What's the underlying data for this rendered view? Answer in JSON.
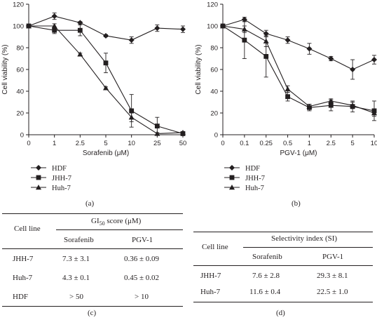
{
  "chart_data": [
    {
      "type": "line",
      "panel_label": "(a)",
      "xlabel": "Sorafenib (μM)",
      "ylabel": "Cell viability (%)",
      "categories": [
        "0",
        "1",
        "2.5",
        "5",
        "10",
        "25",
        "50"
      ],
      "ylim": [
        0,
        120
      ],
      "yticks": [
        "0",
        "20",
        "40",
        "60",
        "80",
        "100",
        "120"
      ],
      "legend_position": "bottom-left",
      "series": [
        {
          "name": "HDF",
          "marker": "diamond",
          "values": [
            100,
            109,
            103,
            91,
            87,
            98,
            97
          ],
          "errors": [
            0,
            3,
            1,
            1,
            3,
            3,
            3
          ]
        },
        {
          "name": "JHH-7",
          "marker": "square",
          "values": [
            100,
            96,
            96,
            66,
            22,
            8,
            1
          ],
          "errors": [
            0,
            3,
            5,
            9,
            15,
            8,
            1
          ]
        },
        {
          "name": "Huh-7",
          "marker": "triangle",
          "values": [
            100,
            100,
            74,
            43,
            16,
            1,
            2
          ],
          "errors": [
            0,
            2,
            1,
            1,
            4,
            1,
            1
          ]
        }
      ]
    },
    {
      "type": "line",
      "panel_label": "(b)",
      "xlabel": "PGV-1 (μM)",
      "ylabel": "Cell viability (%)",
      "categories": [
        "0",
        "0.1",
        "0.25",
        "0.5",
        "1",
        "2.5",
        "5",
        "10"
      ],
      "ylim": [
        0,
        120
      ],
      "yticks": [
        "0",
        "20",
        "40",
        "60",
        "80",
        "100",
        "120"
      ],
      "legend_position": "bottom-left",
      "series": [
        {
          "name": "HDF",
          "marker": "diamond",
          "values": [
            100,
            106,
            93,
            87,
            79,
            70,
            60,
            69
          ],
          "errors": [
            0,
            2,
            3,
            3,
            5,
            2,
            9,
            4
          ]
        },
        {
          "name": "JHH-7",
          "marker": "square",
          "values": [
            100,
            87,
            72,
            35,
            25,
            27,
            26,
            22
          ],
          "errors": [
            0,
            17,
            19,
            4,
            3,
            5,
            5,
            9
          ]
        },
        {
          "name": "Huh-7",
          "marker": "triangle",
          "values": [
            100,
            97,
            86,
            42,
            26,
            31,
            27,
            20
          ],
          "errors": [
            0,
            3,
            5,
            3,
            2,
            2,
            3,
            3
          ]
        }
      ]
    },
    {
      "type": "table",
      "panel_label": "(c)",
      "row_header": "Cell line",
      "group_header": {
        "main": "GI",
        "sub": "50",
        "rest": " score (μM)"
      },
      "columns": [
        "Sorafenib",
        "PGV-1"
      ],
      "rows": [
        {
          "cell_line": "JHH-7",
          "values": [
            "7.3 ± 3.1",
            "0.36 ± 0.09"
          ]
        },
        {
          "cell_line": "Huh-7",
          "values": [
            "4.3 ± 0.1",
            "0.45 ± 0.02"
          ]
        },
        {
          "cell_line": "HDF",
          "values": [
            "> 50",
            "> 10"
          ]
        }
      ]
    },
    {
      "type": "table",
      "panel_label": "(d)",
      "row_header": "Cell line",
      "group_header": "Selectivity index (SI)",
      "columns": [
        "Sorafenib",
        "PGV-1"
      ],
      "rows": [
        {
          "cell_line": "JHH-7",
          "values": [
            "7.6 ± 2.8",
            "29.3 ± 8.1"
          ]
        },
        {
          "cell_line": "Huh-7",
          "values": [
            "11.6 ± 0.4",
            "22.5 ± 1.0"
          ]
        }
      ]
    }
  ]
}
